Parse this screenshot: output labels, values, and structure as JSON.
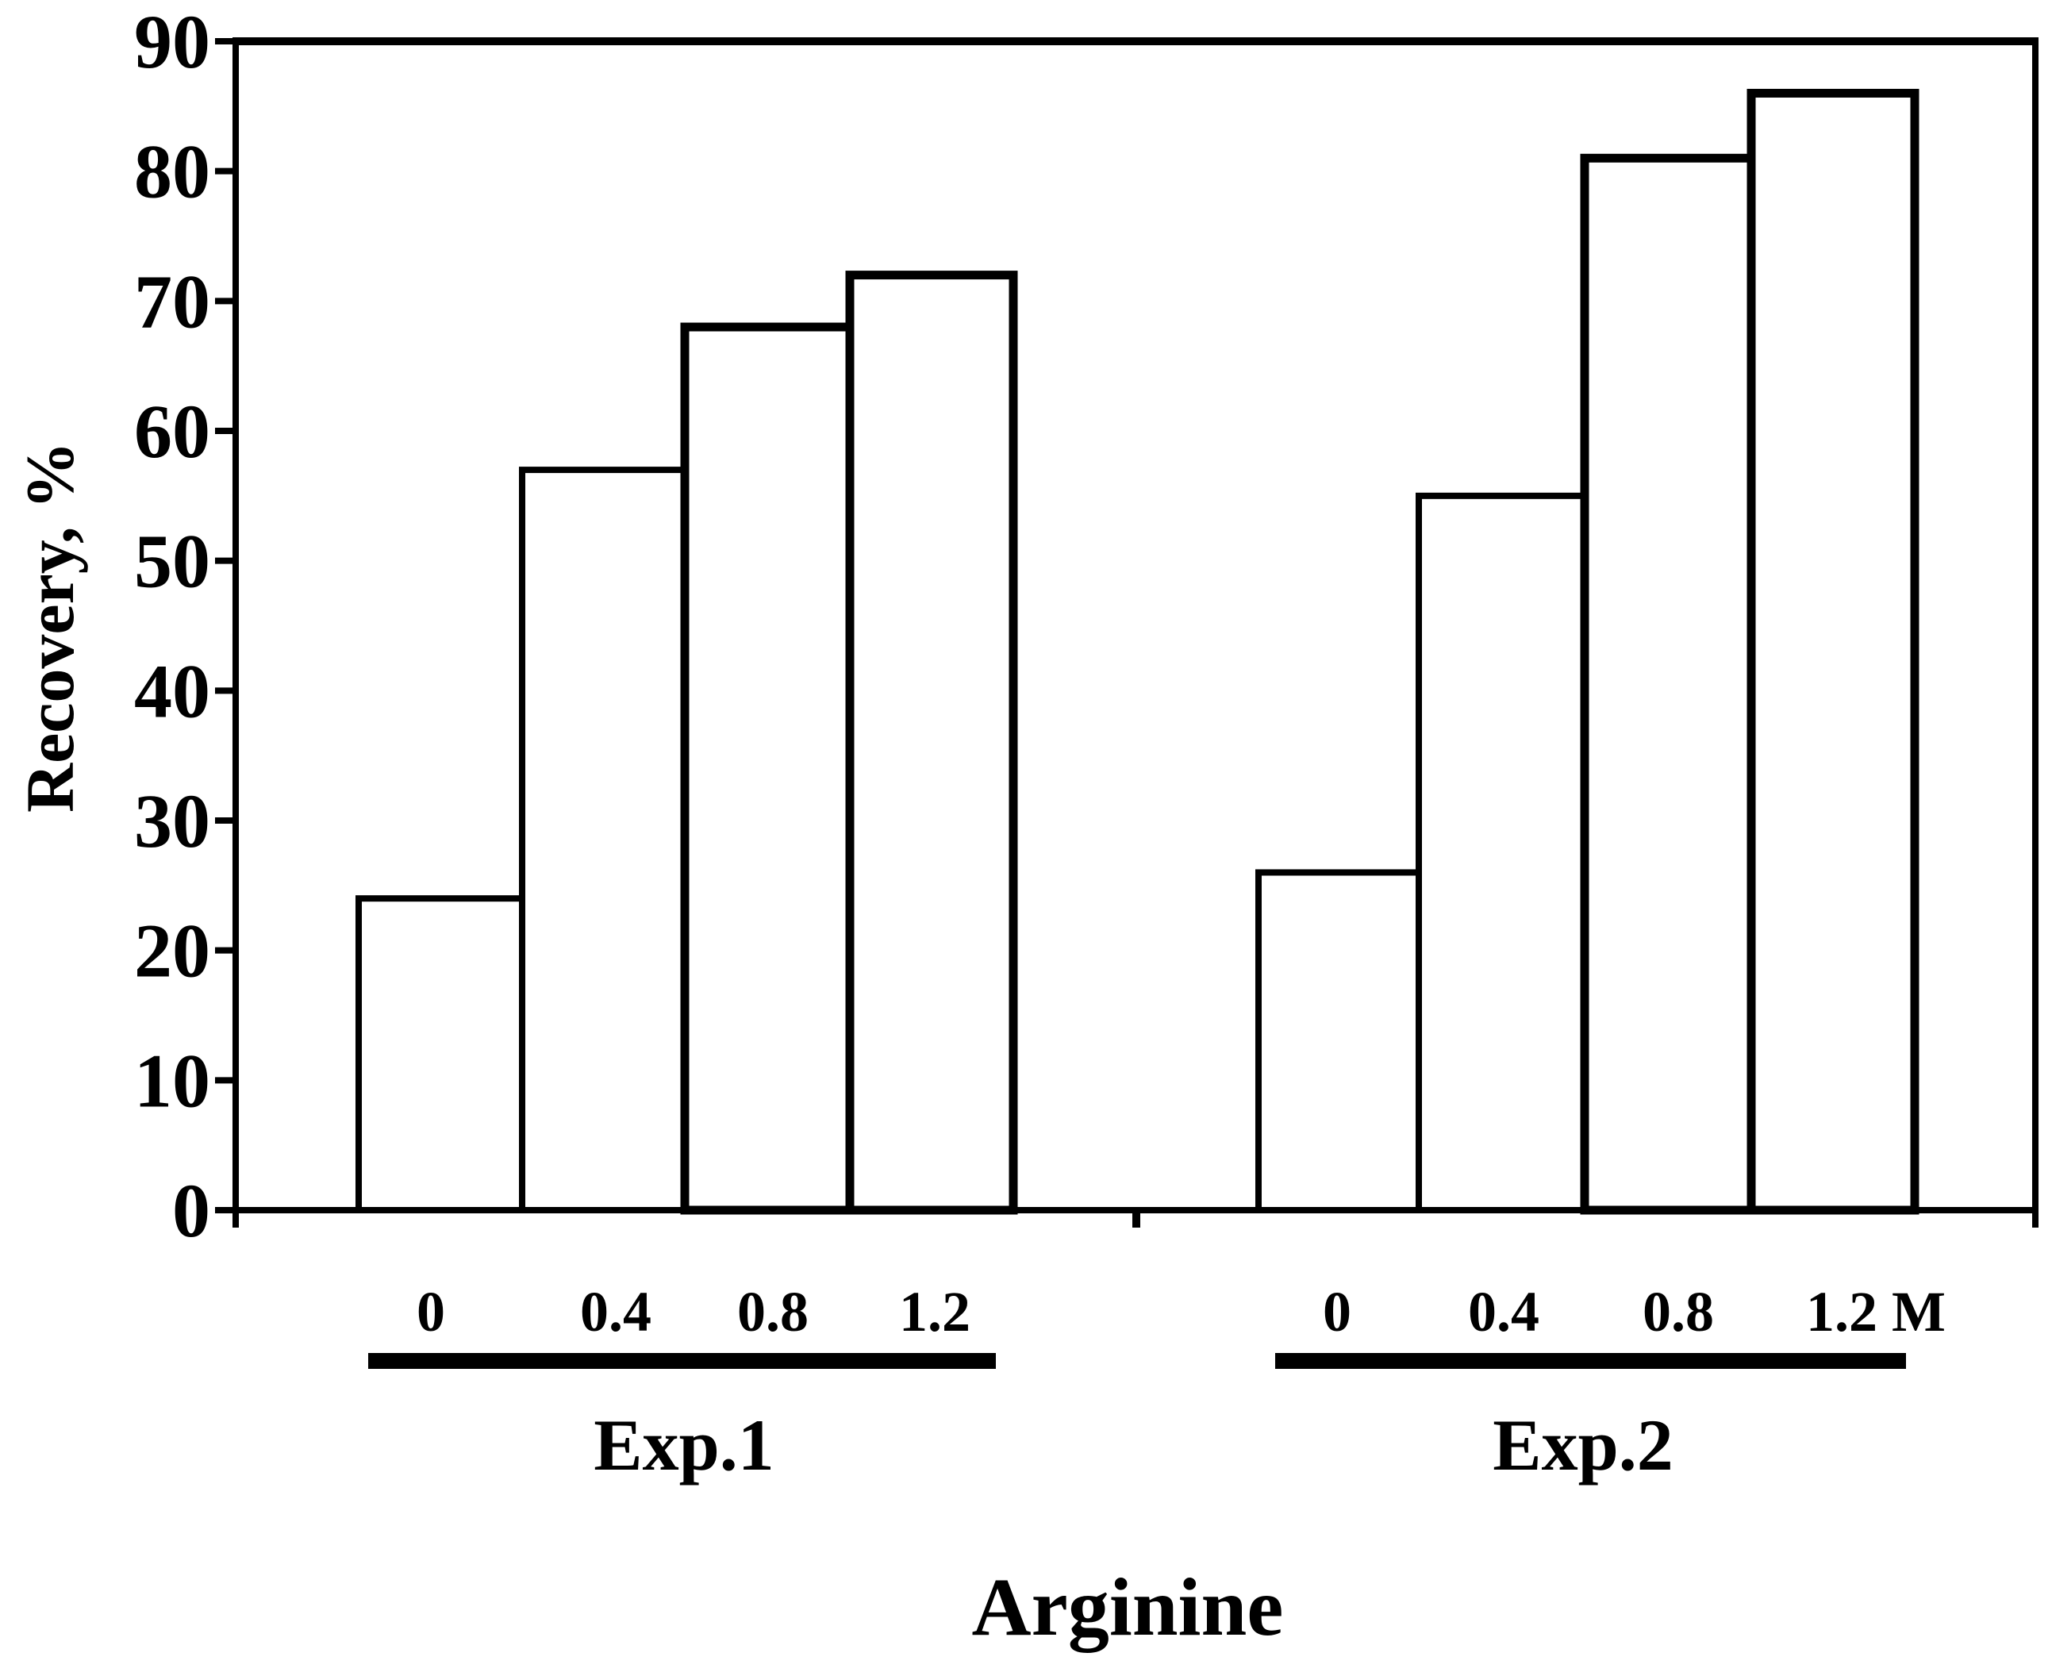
{
  "chart_data": {
    "type": "bar",
    "title": "",
    "xlabel": "Arginine",
    "ylabel": "Recovery, %",
    "ylim": [
      0,
      90
    ],
    "yticks": [
      0,
      10,
      20,
      30,
      40,
      50,
      60,
      70,
      80,
      90
    ],
    "grid": false,
    "legend": null,
    "categories": [
      "0",
      "0.4",
      "0.8",
      "1.2"
    ],
    "category_unit": "M",
    "groups": [
      {
        "name": "Exp.1",
        "labels": [
          "0",
          "0.4",
          "0.8",
          "1.2"
        ],
        "values": [
          24,
          57,
          68,
          72
        ]
      },
      {
        "name": "Exp.2",
        "labels": [
          "0",
          "0.4",
          "0.8",
          "1.2 M"
        ],
        "values": [
          26,
          55,
          81,
          86
        ]
      }
    ],
    "series": [
      {
        "name": "Exp.1",
        "values": [
          24,
          57,
          68,
          72
        ]
      },
      {
        "name": "Exp.2",
        "values": [
          26,
          55,
          81,
          86
        ]
      }
    ],
    "bar_fill": "#ffffff",
    "bar_stroke": "#000000"
  },
  "axes": {
    "ylabel": "Recovery, %",
    "xlabel": "Arginine"
  },
  "groups": {
    "g1": {
      "name": "Exp.1"
    },
    "g2": {
      "name": "Exp.2"
    }
  }
}
